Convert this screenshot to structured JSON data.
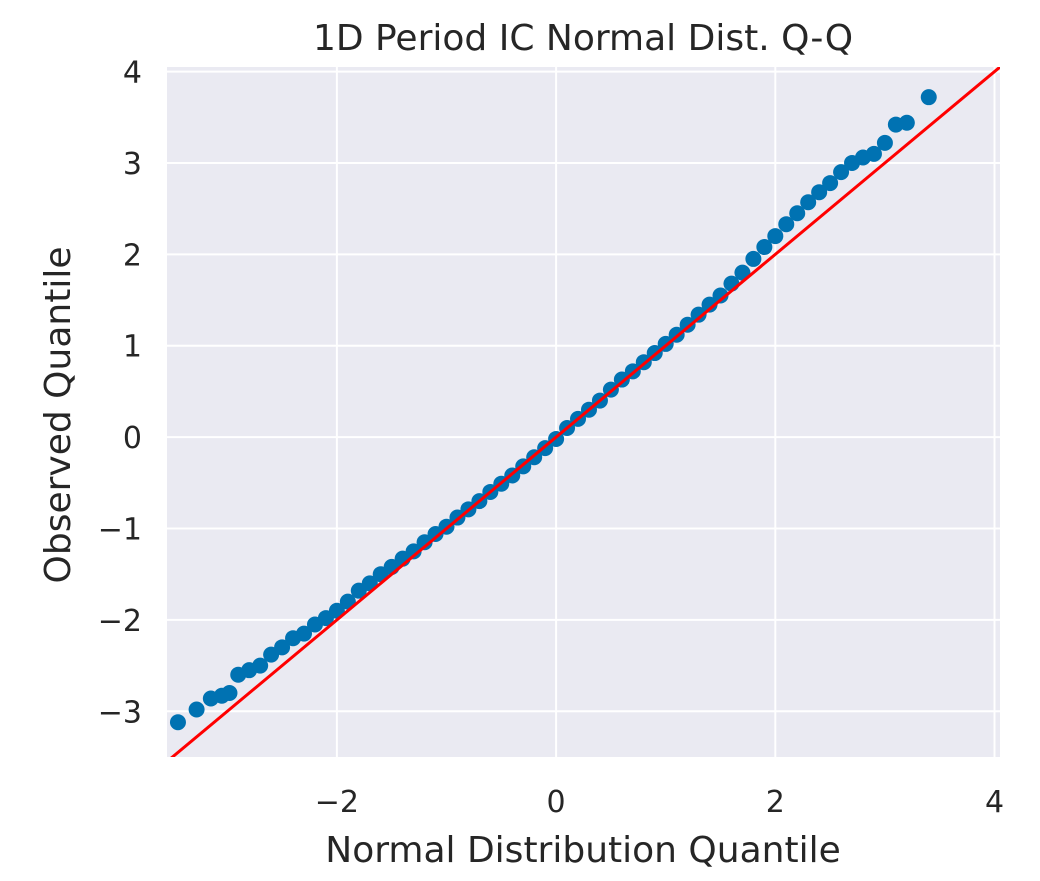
{
  "chart_data": {
    "type": "scatter",
    "title": "1D Period IC Normal Dist. Q-Q",
    "xlabel": "Normal Distribution Quantile",
    "ylabel": "Observed Quantile",
    "xlim": [
      -3.55,
      4.05
    ],
    "ylim": [
      -3.5,
      4.05
    ],
    "xticks": [
      -2,
      0,
      2,
      4
    ],
    "xtick_labels": [
      "−2",
      "0",
      "2",
      "4"
    ],
    "yticks": [
      -3,
      -2,
      -1,
      0,
      1,
      2,
      3,
      4
    ],
    "ytick_labels": [
      "−3",
      "−2",
      "−1",
      "0",
      "1",
      "2",
      "3",
      "4"
    ],
    "grid": true,
    "reference_line": {
      "slope": 1,
      "intercept": 0,
      "color": "#ff0000"
    },
    "series": [
      {
        "x": [
          -3.45,
          -3.28,
          -3.15,
          -3.05,
          -2.98,
          -2.9,
          -2.8,
          -2.7,
          -2.6,
          -2.5,
          -2.4,
          -2.3,
          -2.2,
          -2.1,
          -2.0,
          -1.9,
          -1.8,
          -1.7,
          -1.6,
          -1.5,
          -1.4,
          -1.3,
          -1.2,
          -1.1,
          -1.0,
          -0.9,
          -0.8,
          -0.7,
          -0.6,
          -0.5,
          -0.4,
          -0.3,
          -0.2,
          -0.1,
          0.0,
          0.1,
          0.2,
          0.3,
          0.4,
          0.5,
          0.6,
          0.7,
          0.8,
          0.9,
          1.0,
          1.1,
          1.2,
          1.3,
          1.4,
          1.5,
          1.6,
          1.7,
          1.8,
          1.9,
          2.0,
          2.1,
          2.2,
          2.3,
          2.4,
          2.5,
          2.6,
          2.7,
          2.8,
          2.9,
          3.0,
          3.1,
          3.2,
          3.4
        ],
        "y": [
          -3.12,
          -2.98,
          -2.86,
          -2.83,
          -2.8,
          -2.6,
          -2.55,
          -2.5,
          -2.38,
          -2.3,
          -2.2,
          -2.15,
          -2.05,
          -1.98,
          -1.9,
          -1.8,
          -1.68,
          -1.6,
          -1.5,
          -1.42,
          -1.33,
          -1.25,
          -1.15,
          -1.06,
          -0.98,
          -0.88,
          -0.79,
          -0.7,
          -0.6,
          -0.51,
          -0.42,
          -0.32,
          -0.22,
          -0.12,
          -0.02,
          0.1,
          0.2,
          0.3,
          0.4,
          0.52,
          0.63,
          0.72,
          0.82,
          0.92,
          1.02,
          1.12,
          1.23,
          1.34,
          1.45,
          1.55,
          1.68,
          1.8,
          1.95,
          2.08,
          2.2,
          2.33,
          2.45,
          2.57,
          2.68,
          2.78,
          2.9,
          3.0,
          3.06,
          3.1,
          3.22,
          3.42,
          3.44,
          3.72
        ],
        "color": "#0072b2"
      }
    ]
  }
}
